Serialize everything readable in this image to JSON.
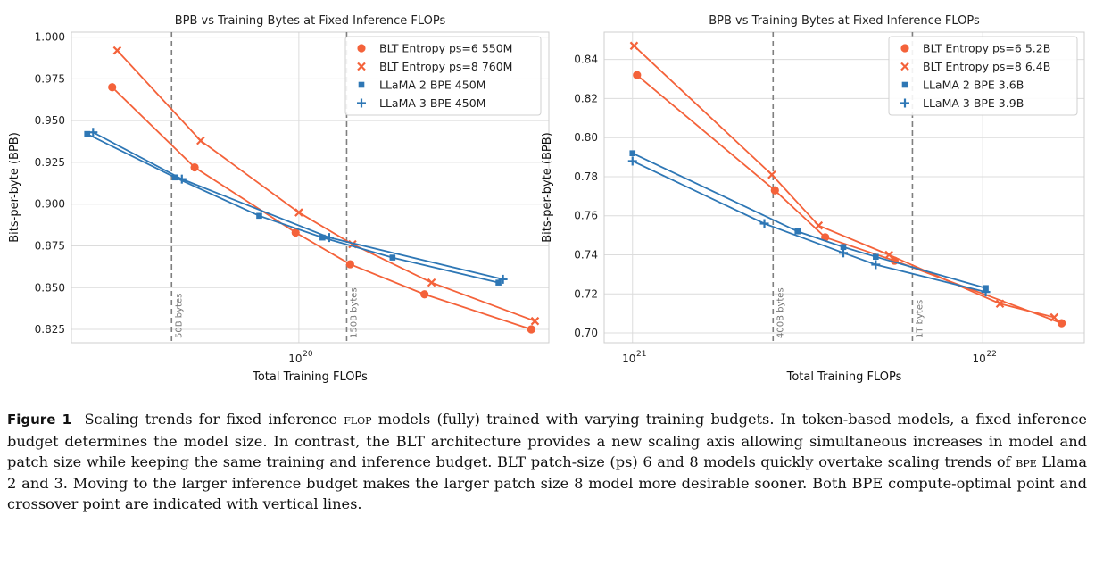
{
  "chart_data": [
    {
      "type": "line",
      "title": "BPB vs Training Bytes at Fixed Inference FLOPs",
      "xlabel": "Total Training FLOPs",
      "ylabel": "Bits-per-byte (BPB)",
      "xscale": "log",
      "xlim": [
        2.4e+19,
        4.8e+20
      ],
      "ylim": [
        0.817,
        1.003
      ],
      "yticks": [
        0.825,
        0.85,
        0.875,
        0.9,
        0.925,
        0.95,
        0.975,
        1.0
      ],
      "ytick_labels": [
        "0.825",
        "0.850",
        "0.875",
        "0.900",
        "0.925",
        "0.950",
        "0.975",
        "1.000"
      ],
      "xticks": [
        1e+20
      ],
      "xtick_labels": [
        {
          "base": "10",
          "exp": "20"
        }
      ],
      "grid": true,
      "legend_position": "top-right",
      "vlines": [
        {
          "x": 4.5e+19,
          "label": "50B bytes"
        },
        {
          "x": 1.35e+20,
          "label": "150B bytes"
        }
      ],
      "series": [
        {
          "name": "BLT Entropy ps=6 550M",
          "marker": "circle",
          "color": "#f4623a",
          "x": [
            3.1e+19,
            5.2e+19,
            9.8e+19,
            1.38e+20,
            2.2e+20,
            4.3e+20
          ],
          "y": [
            0.97,
            0.922,
            0.883,
            0.864,
            0.846,
            0.825
          ]
        },
        {
          "name": "BLT Entropy ps=8 760M",
          "marker": "x",
          "color": "#f4623a",
          "x": [
            3.2e+19,
            5.4e+19,
            1e+20,
            1.4e+20,
            2.3e+20,
            4.4e+20
          ],
          "y": [
            0.992,
            0.938,
            0.895,
            0.876,
            0.853,
            0.83
          ]
        },
        {
          "name": "LLaMA 2 BPE 450M",
          "marker": "square",
          "color": "#2e77b5",
          "x": [
            2.65e+19,
            4.6e+19,
            7.8e+19,
            1.16e+20,
            1.8e+20,
            3.5e+20
          ],
          "y": [
            0.942,
            0.916,
            0.893,
            0.88,
            0.868,
            0.853
          ]
        },
        {
          "name": "LLaMA 3 BPE 450M",
          "marker": "plus",
          "color": "#2e77b5",
          "x": [
            2.75e+19,
            4.8e+19,
            1.21e+20,
            3.6e+20
          ],
          "y": [
            0.943,
            0.915,
            0.88,
            0.855
          ]
        }
      ]
    },
    {
      "type": "line",
      "title": "BPB vs Training Bytes at Fixed Inference FLOPs",
      "xlabel": "Total Training FLOPs",
      "ylabel": "Bits-per-byte (BPB)",
      "xscale": "log",
      "xlim": [
        8.3e+20,
        1.95e+22
      ],
      "ylim": [
        0.695,
        0.854
      ],
      "yticks": [
        0.7,
        0.72,
        0.74,
        0.76,
        0.78,
        0.8,
        0.82,
        0.84
      ],
      "ytick_labels": [
        "0.70",
        "0.72",
        "0.74",
        "0.76",
        "0.78",
        "0.80",
        "0.82",
        "0.84"
      ],
      "xticks": [
        1e+21,
        1e+22
      ],
      "xtick_labels": [
        {
          "base": "10",
          "exp": "21"
        },
        {
          "base": "10",
          "exp": "22"
        }
      ],
      "grid": true,
      "legend_position": "top-right",
      "vlines": [
        {
          "x": 2.52e+21,
          "label": "400B bytes"
        },
        {
          "x": 6.3e+21,
          "label": "1T bytes"
        }
      ],
      "series": [
        {
          "name": "BLT Entropy ps=6 5.2B",
          "marker": "circle",
          "color": "#f4623a",
          "x": [
            1.03e+21,
            2.55e+21,
            3.55e+21,
            5.6e+21,
            1.68e+22
          ],
          "y": [
            0.832,
            0.773,
            0.749,
            0.737,
            0.705
          ]
        },
        {
          "name": "BLT Entropy ps=8 6.4B",
          "marker": "x",
          "color": "#f4623a",
          "x": [
            1.01e+21,
            2.5e+21,
            3.4e+21,
            5.4e+21,
            1.12e+22,
            1.6e+22
          ],
          "y": [
            0.847,
            0.781,
            0.755,
            0.74,
            0.715,
            0.708
          ]
        },
        {
          "name": "LLaMA 2 BPE 3.6B",
          "marker": "square",
          "color": "#2e77b5",
          "x": [
            1e+21,
            2.96e+21,
            4e+21,
            4.95e+21,
            1.02e+22
          ],
          "y": [
            0.792,
            0.752,
            0.744,
            0.739,
            0.723
          ]
        },
        {
          "name": "LLaMA 3 BPE 3.9B",
          "marker": "plus",
          "color": "#2e77b5",
          "x": [
            1e+21,
            2.38e+21,
            4e+21,
            4.95e+21,
            1.02e+22
          ],
          "y": [
            0.788,
            0.756,
            0.741,
            0.735,
            0.721
          ]
        }
      ]
    }
  ],
  "caption": {
    "label": "Figure 1",
    "segments": [
      {
        "text": "Scaling trends for fixed inference ",
        "sc": false
      },
      {
        "text": "flop",
        "sc": true
      },
      {
        "text": " models (fully) trained with varying training budgets. In token-based models, a fixed inference budget determines the model size. In contrast, the BLT architecture provides a new scaling axis allowing simultaneous increases in model and patch size while keeping the same training and inference budget. BLT patch-size (ps) 6 and 8 models quickly overtake scaling trends of ",
        "sc": false
      },
      {
        "text": "bpe",
        "sc": true
      },
      {
        "text": " Llama 2 and 3. Moving to the larger inference budget makes the larger patch size 8 model more desirable sooner. Both BPE compute-optimal point and crossover point are indicated with vertical lines.",
        "sc": false
      }
    ]
  }
}
